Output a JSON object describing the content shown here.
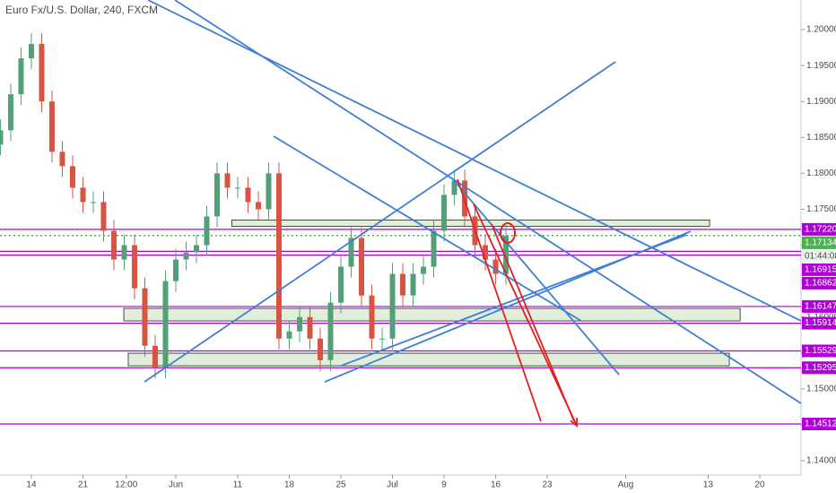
{
  "chart_data": {
    "type": "candlestick",
    "title": "Euro Fx/U.S. Dollar, 240, FXCM",
    "x": [
      -3,
      -2,
      -1,
      0,
      1,
      2,
      3,
      4,
      5,
      6,
      7,
      8,
      9,
      10,
      11,
      12,
      13,
      14,
      15,
      16,
      17,
      18,
      19,
      20,
      21,
      22,
      23,
      24,
      25,
      26,
      27,
      28,
      29,
      30,
      31,
      32,
      33,
      34,
      35,
      36,
      37,
      38,
      39,
      40,
      41,
      42,
      43,
      44,
      45,
      46
    ],
    "open": [
      1.184,
      1.186,
      1.191,
      1.196,
      1.198,
      1.19,
      1.183,
      1.181,
      1.178,
      1.176,
      1.176,
      1.172,
      1.168,
      1.17,
      1.164,
      1.156,
      1.153,
      1.165,
      1.168,
      1.169,
      1.17,
      1.174,
      1.18,
      1.178,
      1.178,
      1.176,
      1.175,
      1.18,
      1.157,
      1.158,
      1.16,
      1.157,
      1.154,
      1.162,
      1.167,
      1.171,
      1.163,
      1.157,
      1.157,
      1.166,
      1.163,
      1.166,
      1.167,
      1.172,
      1.177,
      1.179,
      1.174,
      1.17,
      1.168,
      1.166
    ],
    "high": [
      1.1875,
      1.1925,
      1.1975,
      1.1995,
      1.1995,
      1.1915,
      1.1845,
      1.1825,
      1.1795,
      1.1775,
      1.1775,
      1.1735,
      1.1715,
      1.1715,
      1.1655,
      1.1575,
      1.1665,
      1.1695,
      1.1705,
      1.1715,
      1.1755,
      1.1815,
      1.1815,
      1.1795,
      1.1795,
      1.1775,
      1.1815,
      1.1815,
      1.1595,
      1.1615,
      1.1615,
      1.1585,
      1.1635,
      1.1685,
      1.1725,
      1.1725,
      1.1645,
      1.1585,
      1.1675,
      1.1675,
      1.1675,
      1.1685,
      1.1735,
      1.1785,
      1.1805,
      1.1805,
      1.1755,
      1.1715,
      1.1695,
      1.1728
    ],
    "low": [
      1.1825,
      1.1845,
      1.1895,
      1.1945,
      1.1885,
      1.1815,
      1.1795,
      1.1765,
      1.1745,
      1.1745,
      1.1705,
      1.1665,
      1.1665,
      1.1625,
      1.1545,
      1.1515,
      1.1515,
      1.1635,
      1.1665,
      1.1675,
      1.1685,
      1.1725,
      1.1765,
      1.1765,
      1.1745,
      1.1735,
      1.1735,
      1.1555,
      1.1555,
      1.1565,
      1.1555,
      1.1525,
      1.1525,
      1.1605,
      1.1655,
      1.1615,
      1.1555,
      1.1555,
      1.1555,
      1.1615,
      1.1615,
      1.1645,
      1.1655,
      1.1705,
      1.1755,
      1.1725,
      1.1685,
      1.1665,
      1.1645,
      1.1645
    ],
    "close": [
      1.186,
      1.191,
      1.196,
      1.198,
      1.19,
      1.183,
      1.181,
      1.178,
      1.176,
      1.176,
      1.172,
      1.168,
      1.17,
      1.164,
      1.156,
      1.153,
      1.165,
      1.168,
      1.169,
      1.17,
      1.174,
      1.18,
      1.178,
      1.178,
      1.176,
      1.175,
      1.18,
      1.157,
      1.158,
      1.16,
      1.157,
      1.154,
      1.162,
      1.167,
      1.171,
      1.163,
      1.157,
      1.157,
      1.166,
      1.163,
      1.166,
      1.167,
      1.172,
      1.177,
      1.179,
      1.174,
      1.17,
      1.168,
      1.166,
      1.1713
    ],
    "up_color": "#53a078",
    "down_color": "#d75442",
    "xlim": [
      -3.04,
      74.6
    ],
    "ylim": [
      1.13801,
      1.20412
    ],
    "xticks": [
      {
        "value": 0,
        "label": "14"
      },
      {
        "value": 5,
        "label": "21"
      },
      {
        "value": 9.2,
        "label": "12:00"
      },
      {
        "value": 14,
        "label": "Jun"
      },
      {
        "value": 20,
        "label": "11"
      },
      {
        "value": 25,
        "label": "18"
      },
      {
        "value": 30,
        "label": "25"
      },
      {
        "value": 35,
        "label": "Jul"
      },
      {
        "value": 40,
        "label": "9"
      },
      {
        "value": 45,
        "label": "16"
      },
      {
        "value": 50,
        "label": "23"
      },
      {
        "value": 57.6,
        "label": "Aug"
      },
      {
        "value": 65.6,
        "label": "13"
      },
      {
        "value": 70.6,
        "label": "20"
      }
    ],
    "yticks": [
      {
        "value": 1.14,
        "label": "1.14000"
      },
      {
        "value": 1.145,
        "label": "1.14500"
      },
      {
        "value": 1.15,
        "label": "1.15000"
      },
      {
        "value": 1.155,
        "label": "1.15500"
      },
      {
        "value": 1.16,
        "label": "1.16000"
      },
      {
        "value": 1.165,
        "label": "1.16500"
      },
      {
        "value": 1.17,
        "label": "1.17000"
      },
      {
        "value": 1.175,
        "label": "1.17500"
      },
      {
        "value": 1.18,
        "label": "1.18000"
      },
      {
        "value": 1.185,
        "label": "1.18500"
      },
      {
        "value": 1.19,
        "label": "1.19000"
      },
      {
        "value": 1.195,
        "label": "1.19500"
      },
      {
        "value": 1.2,
        "label": "1.20000"
      }
    ],
    "level_color": "#b000d8",
    "levels": [
      {
        "value": 1.1722,
        "label": "1.17220"
      },
      {
        "value": 1.16915,
        "label": "1.16915"
      },
      {
        "value": 1.16862,
        "label": "1.16862"
      },
      {
        "value": 1.16147,
        "label": "1.16147"
      },
      {
        "value": 1.15914,
        "label": "1.15914"
      },
      {
        "value": 1.15529,
        "label": "1.15529"
      },
      {
        "value": 1.15295,
        "label": "1.15295"
      },
      {
        "value": 1.14512,
        "label": "1.14512"
      }
    ],
    "current": {
      "value": 1.17134,
      "label": "1.17134",
      "countdown": "01:44:08",
      "color": "#4caf50"
    },
    "zones": [
      {
        "x": [
          19.43,
          65.74
        ],
        "y": [
          1.1735,
          1.17263
        ]
      },
      {
        "x": [
          8.96,
          68.7
        ],
        "y": [
          1.16121,
          1.15946
        ]
      },
      {
        "x": [
          9.39,
          67.65
        ],
        "y": [
          1.15497,
          1.15322
        ]
      }
    ],
    "trendlines": [
      {
        "color": "#3d7fd6",
        "arrow": false,
        "points": [
          [
            11.3,
            1.20412
          ],
          [
            74.61,
            1.15946
          ]
        ]
      },
      {
        "color": "#3d7fd6",
        "arrow": false,
        "points": [
          [
            13.91,
            1.20412
          ],
          [
            74.61,
            1.14798
          ]
        ]
      },
      {
        "color": "#3d7fd6",
        "arrow": false,
        "points": [
          [
            10.96,
            1.15098
          ],
          [
            56.61,
            1.19551
          ]
        ]
      },
      {
        "color": "#3d7fd6",
        "arrow": false,
        "points": [
          [
            23.48,
            1.18516
          ],
          [
            53.3,
            1.15946
          ]
        ]
      },
      {
        "color": "#3d7fd6",
        "arrow": false,
        "points": [
          [
            40.87,
            1.17917
          ],
          [
            56.96,
            1.15198
          ]
        ]
      },
      {
        "color": "#3d7fd6",
        "arrow": false,
        "points": [
          [
            28.43,
            1.15098
          ],
          [
            63.91,
            1.17193
          ]
        ]
      },
      {
        "color": "#3d7fd6",
        "arrow": false,
        "points": [
          [
            30,
            1.15322
          ],
          [
            63.48,
            1.17144
          ]
        ]
      },
      {
        "color": "#e02020",
        "arrow": false,
        "points": [
          [
            41.3,
            1.17917
          ],
          [
            49.39,
            1.14549
          ]
        ]
      },
      {
        "color": "#e02020",
        "arrow": true,
        "points": [
          [
            42.87,
            1.17568
          ],
          [
            52.87,
            1.14487
          ]
        ]
      },
      {
        "color": "#e02020",
        "arrow": false,
        "points": [
          [
            44.61,
            1.17293
          ],
          [
            52.61,
            1.14549
          ]
        ]
      }
    ],
    "circle": {
      "center": [
        46.17,
        1.17169
      ],
      "color": "#e02020"
    }
  }
}
